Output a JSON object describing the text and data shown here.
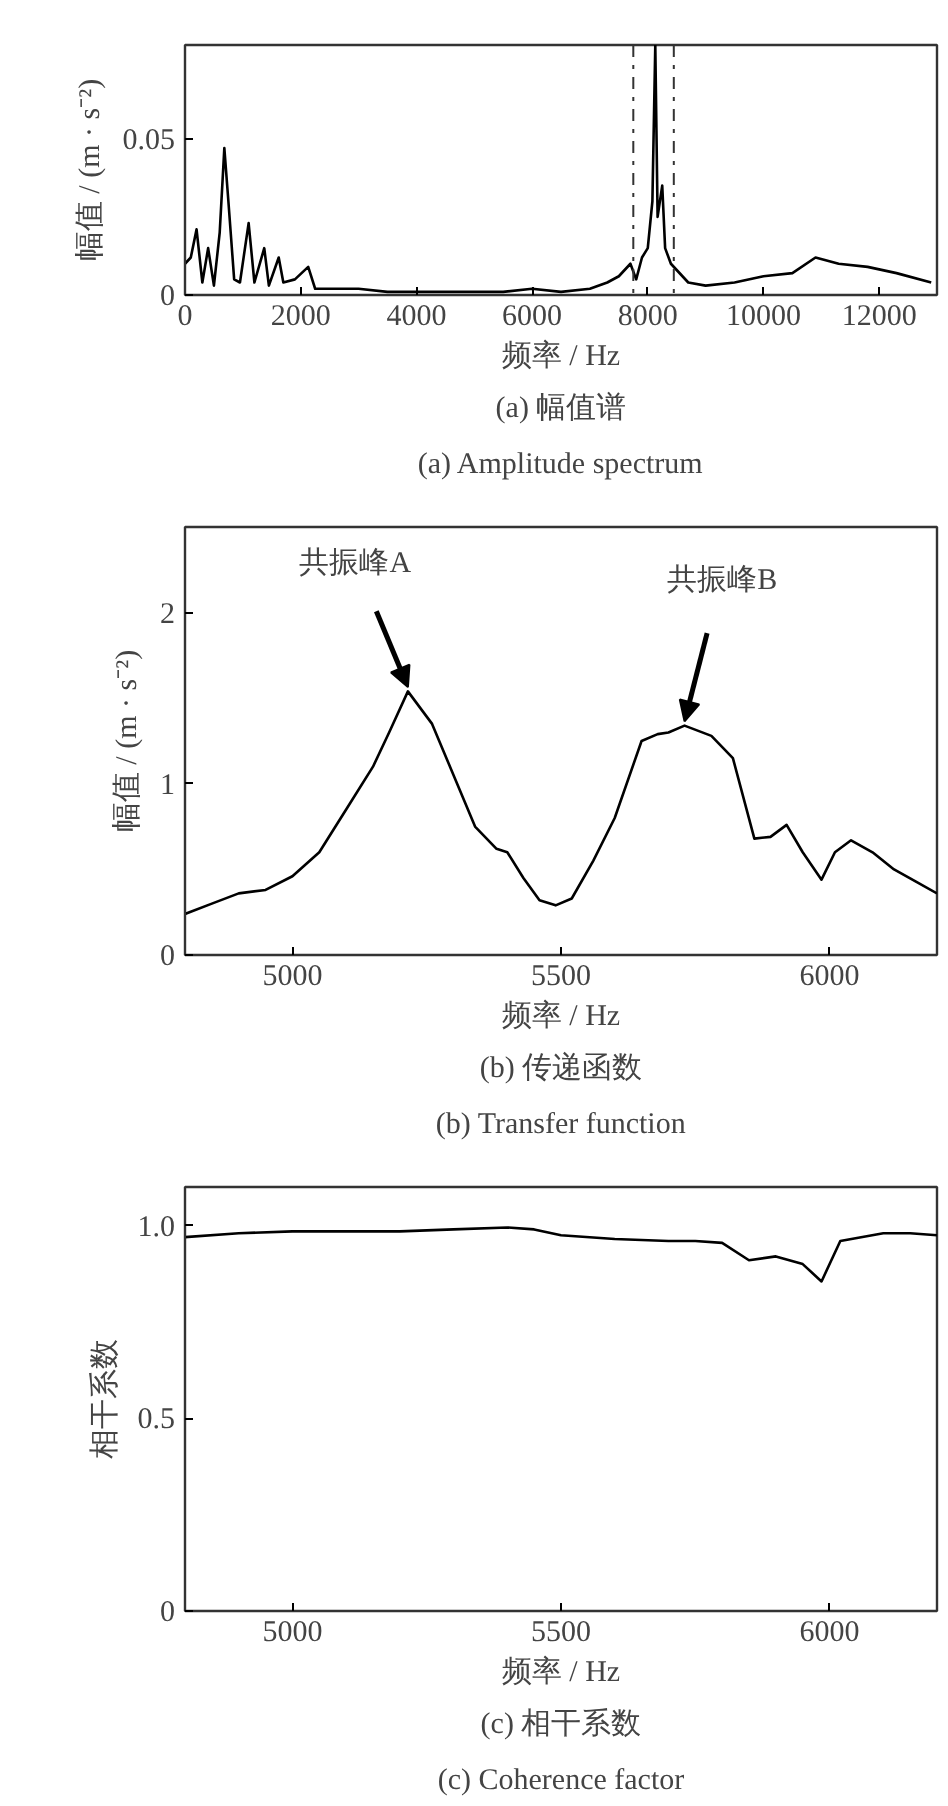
{
  "chart_data": [
    {
      "type": "line",
      "title": "(a) 幅值谱",
      "subtitle": "(a) Amplitude spectrum",
      "xlabel": "频率 / Hz",
      "ylabel": "幅值 / (m · s⁻²)",
      "x": [
        0,
        100,
        200,
        300,
        400,
        500,
        600,
        680,
        750,
        850,
        950,
        1100,
        1200,
        1370,
        1450,
        1620,
        1700,
        1900,
        2130,
        2250,
        2500,
        3000,
        3500,
        4000,
        4500,
        5000,
        5500,
        6000,
        6500,
        7000,
        7300,
        7500,
        7700,
        7800,
        7900,
        8000,
        8080,
        8130,
        8170,
        8250,
        8300,
        8400,
        8500,
        8700,
        9000,
        9500,
        10000,
        10500,
        10900,
        11300,
        11800,
        12300,
        12900
      ],
      "series": [
        {
          "color": "#000000",
          "values": [
            0.01,
            0.012,
            0.021,
            0.004,
            0.015,
            0.003,
            0.02,
            0.047,
            0.03,
            0.005,
            0.004,
            0.023,
            0.004,
            0.015,
            0.003,
            0.012,
            0.004,
            0.005,
            0.009,
            0.002,
            0.002,
            0.002,
            0.001,
            0.001,
            0.001,
            0.001,
            0.001,
            0.002,
            0.001,
            0.002,
            0.004,
            0.006,
            0.01,
            0.005,
            0.012,
            0.015,
            0.03,
            0.08,
            0.025,
            0.035,
            0.015,
            0.01,
            0.008,
            0.004,
            0.003,
            0.004,
            0.006,
            0.007,
            0.012,
            0.01,
            0.009,
            0.007,
            0.004
          ]
        }
      ],
      "xlim": [
        0,
        13000
      ],
      "ylim": [
        0,
        0.08
      ],
      "xticks": [
        0,
        2000,
        4000,
        6000,
        8000,
        10000,
        12000
      ],
      "yticks": [
        0,
        0.05
      ],
      "ref_lines": [
        {
          "axis": "x",
          "value": 7750,
          "line_style": "dashdot"
        },
        {
          "axis": "x",
          "value": 8450,
          "line_style": "dashdot"
        }
      ]
    },
    {
      "type": "line",
      "title": "(b) 传递函数",
      "subtitle": "(b) Transfer function",
      "xlabel": "频率 / Hz",
      "ylabel": "幅值 / (m · s⁻²)",
      "x": [
        4800,
        4850,
        4900,
        4950,
        5000,
        5050,
        5100,
        5150,
        5180,
        5215,
        5260,
        5300,
        5340,
        5380,
        5400,
        5430,
        5460,
        5490,
        5520,
        5560,
        5600,
        5650,
        5680,
        5700,
        5730,
        5780,
        5820,
        5860,
        5890,
        5920,
        5950,
        5985,
        6010,
        6040,
        6080,
        6120,
        6160,
        6200
      ],
      "series": [
        {
          "color": "#000000",
          "values": [
            0.24,
            0.3,
            0.36,
            0.38,
            0.46,
            0.6,
            0.85,
            1.1,
            1.3,
            1.54,
            1.35,
            1.05,
            0.75,
            0.62,
            0.6,
            0.45,
            0.32,
            0.29,
            0.33,
            0.55,
            0.8,
            1.25,
            1.29,
            1.3,
            1.34,
            1.28,
            1.15,
            0.68,
            0.69,
            0.76,
            0.6,
            0.44,
            0.6,
            0.67,
            0.6,
            0.5,
            0.43,
            0.36
          ]
        }
      ],
      "xlim": [
        4800,
        6200
      ],
      "ylim": [
        0,
        2.5
      ],
      "xticks": [
        5000,
        5500,
        6000
      ],
      "yticks": [
        0,
        1,
        2
      ],
      "annotations": [
        {
          "text": "共振峰A",
          "x": 5215,
          "y": 1.54
        },
        {
          "text": "共振峰B",
          "x": 5730,
          "y": 1.34
        }
      ]
    },
    {
      "type": "line",
      "title": "(c) 相干系数",
      "subtitle": "(c) Coherence factor",
      "xlabel": "频率 / Hz",
      "ylabel": "相干系数",
      "x": [
        4800,
        4900,
        5000,
        5100,
        5200,
        5300,
        5400,
        5450,
        5500,
        5600,
        5700,
        5750,
        5800,
        5850,
        5900,
        5950,
        5985,
        6020,
        6100,
        6150,
        6200
      ],
      "series": [
        {
          "color": "#000000",
          "values": [
            0.97,
            0.98,
            0.985,
            0.985,
            0.985,
            0.99,
            0.995,
            0.99,
            0.975,
            0.965,
            0.96,
            0.96,
            0.955,
            0.91,
            0.92,
            0.9,
            0.855,
            0.96,
            0.98,
            0.98,
            0.975
          ]
        }
      ],
      "xlim": [
        4800,
        6200
      ],
      "ylim": [
        0,
        1.1
      ],
      "xticks": [
        5000,
        5500,
        6000
      ],
      "yticks": [
        0,
        0.5,
        {
          "value": 1.0,
          "label": "1.0"
        }
      ]
    }
  ]
}
